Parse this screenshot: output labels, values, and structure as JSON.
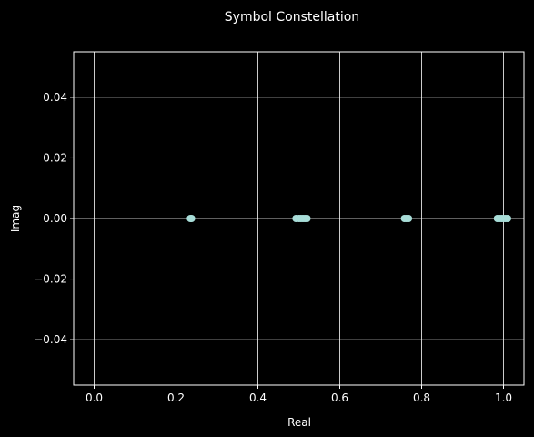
{
  "chart_data": {
    "type": "scatter",
    "title": "Symbol Constellation",
    "xlabel": "Real",
    "ylabel": "Imag",
    "xlim": [
      -0.05,
      1.05
    ],
    "ylim": [
      -0.055,
      0.055
    ],
    "xticks": [
      0.0,
      0.2,
      0.4,
      0.6,
      0.8,
      1.0
    ],
    "xtick_labels": [
      "0.0",
      "0.2",
      "0.4",
      "0.6",
      "0.8",
      "1.0"
    ],
    "yticks": [
      -0.04,
      -0.02,
      0.0,
      0.02,
      0.04
    ],
    "ytick_labels": [
      "−0.04",
      "−0.02",
      "0.00",
      "0.02",
      "0.04"
    ],
    "grid": true,
    "colors": {
      "background": "#000000",
      "marker": "#a8ddd8",
      "grid": "#ffffff",
      "text": "#ffffff"
    },
    "points": [
      {
        "x": 0.235,
        "y": 0.0
      },
      {
        "x": 0.238,
        "y": 0.0
      },
      {
        "x": 0.493,
        "y": 0.0
      },
      {
        "x": 0.5,
        "y": 0.0
      },
      {
        "x": 0.505,
        "y": 0.0
      },
      {
        "x": 0.51,
        "y": 0.0
      },
      {
        "x": 0.515,
        "y": 0.0
      },
      {
        "x": 0.52,
        "y": 0.0
      },
      {
        "x": 0.758,
        "y": 0.0
      },
      {
        "x": 0.763,
        "y": 0.0
      },
      {
        "x": 0.768,
        "y": 0.0
      },
      {
        "x": 0.985,
        "y": 0.0
      },
      {
        "x": 0.99,
        "y": 0.0
      },
      {
        "x": 0.995,
        "y": 0.0
      },
      {
        "x": 1.0,
        "y": 0.0
      },
      {
        "x": 1.005,
        "y": 0.0
      },
      {
        "x": 1.01,
        "y": 0.0
      }
    ]
  }
}
